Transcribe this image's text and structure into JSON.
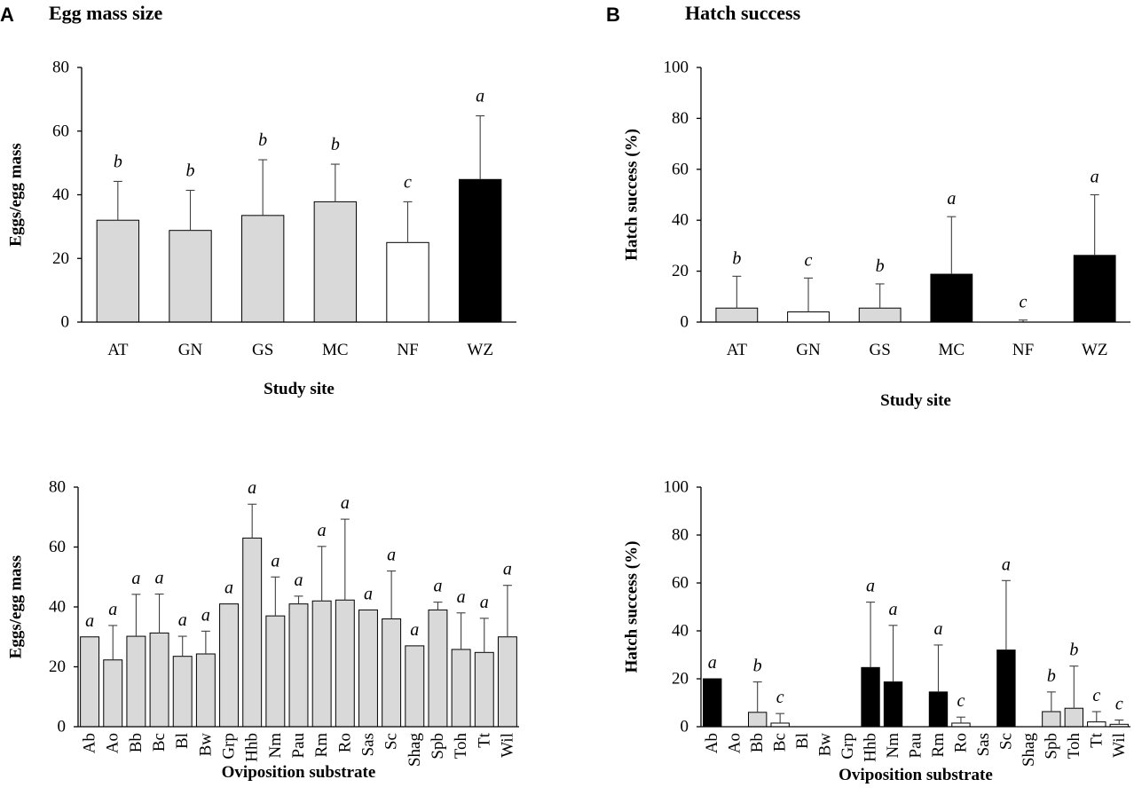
{
  "panels": {
    "A": {
      "letter": "A",
      "title": "Egg mass size"
    },
    "B": {
      "letter": "B",
      "title": "Hatch success"
    }
  },
  "colors": {
    "light": "#d9d9d9",
    "white": "#ffffff",
    "black": "#000000",
    "outline": "#000000"
  },
  "chart_data": [
    {
      "id": "egg_site",
      "type": "bar",
      "title": "Egg mass size",
      "xlabel": "Study site",
      "ylabel": "Eggs/egg mass",
      "ylim": [
        0,
        80
      ],
      "yticks": [
        0,
        20,
        40,
        60,
        80
      ],
      "categories": [
        "AT",
        "GN",
        "GS",
        "MC",
        "NF",
        "WZ"
      ],
      "values": [
        32,
        28.8,
        33.5,
        37.8,
        25,
        44.8
      ],
      "errors": [
        12.2,
        12.6,
        17.5,
        11.8,
        12.8,
        20
      ],
      "letters": [
        "b",
        "b",
        "b",
        "b",
        "c",
        "a"
      ],
      "fills": [
        "light",
        "light",
        "light",
        "light",
        "white",
        "black"
      ]
    },
    {
      "id": "hatch_site",
      "type": "bar",
      "title": "Hatch success",
      "xlabel": "Study site",
      "ylabel": "Hatch success (%)",
      "ylim": [
        0,
        100
      ],
      "yticks": [
        0,
        20,
        40,
        60,
        80,
        100
      ],
      "categories": [
        "AT",
        "GN",
        "GS",
        "MC",
        "NF",
        "WZ"
      ],
      "values": [
        5.5,
        4,
        5.5,
        18.8,
        0,
        26.2
      ],
      "errors": [
        12.5,
        13.3,
        9.5,
        22.6,
        0.8,
        23.8
      ],
      "letters": [
        "b",
        "c",
        "b",
        "a",
        "c",
        "a"
      ],
      "fills": [
        "light",
        "white",
        "light",
        "black",
        "white",
        "black"
      ]
    },
    {
      "id": "egg_substrate",
      "type": "bar",
      "xlabel": "Oviposition substrate",
      "ylabel": "Eggs/egg mass",
      "ylim": [
        0,
        80
      ],
      "yticks": [
        0,
        20,
        40,
        60,
        80
      ],
      "categories": [
        "Ab",
        "Ao",
        "Bb",
        "Bc",
        "Bl",
        "Bw",
        "Grp",
        "Hhb",
        "Nm",
        "Pau",
        "Rm",
        "Ro",
        "Sas",
        "Sc",
        "Shag",
        "Spb",
        "Toh",
        "Tt",
        "Wil"
      ],
      "values": [
        30,
        22.3,
        30.2,
        31.3,
        23.5,
        24.3,
        41,
        63,
        37,
        41,
        42,
        42.3,
        39,
        36,
        27,
        39,
        25.8,
        24.8,
        30
      ],
      "errors": [
        0,
        11.5,
        14,
        13,
        6.7,
        7.6,
        0,
        11.3,
        13,
        2.6,
        18.2,
        27,
        0,
        16,
        0,
        2.6,
        12.2,
        11.4,
        17.2
      ],
      "letters": [
        "a",
        "a",
        "a",
        "a",
        "a",
        "a",
        "a",
        "a",
        "a",
        "a",
        "a",
        "a",
        "a",
        "a",
        "a",
        "a",
        "a",
        "a",
        "a"
      ],
      "fills": [
        "light",
        "light",
        "light",
        "light",
        "light",
        "light",
        "light",
        "light",
        "light",
        "light",
        "light",
        "light",
        "light",
        "light",
        "light",
        "light",
        "light",
        "light",
        "light"
      ]
    },
    {
      "id": "hatch_substrate",
      "type": "bar",
      "xlabel": "Oviposition substrate",
      "ylabel": "Hatch success (%)",
      "ylim": [
        0,
        100
      ],
      "yticks": [
        0,
        20,
        40,
        60,
        80,
        100
      ],
      "categories": [
        "Ab",
        "Ao",
        "Bb",
        "Bc",
        "Bl",
        "Bw",
        "Grp",
        "Hhb",
        "Nm",
        "Pau",
        "Rm",
        "Ro",
        "Sas",
        "Sc",
        "Shag",
        "Spb",
        "Toh",
        "Tt",
        "Wil"
      ],
      "values": [
        20,
        0,
        6,
        1.5,
        0,
        0,
        0,
        24.7,
        18.7,
        0,
        14.5,
        1.5,
        0,
        32,
        0,
        6.3,
        7.7,
        2,
        1
      ],
      "errors": [
        0,
        0,
        12.7,
        4,
        0,
        0,
        0,
        27.3,
        23.6,
        0,
        19.6,
        2.5,
        0,
        29,
        0,
        8.2,
        17.6,
        4.3,
        1.8
      ],
      "letters": [
        "a",
        "",
        "b",
        "c",
        "",
        "",
        "",
        "a",
        "a",
        "",
        "a",
        "c",
        "",
        "a",
        "",
        "b",
        "b",
        "c",
        "c"
      ],
      "fills": [
        "black",
        "white",
        "light",
        "white",
        "white",
        "white",
        "white",
        "black",
        "black",
        "white",
        "black",
        "white",
        "white",
        "black",
        "white",
        "light",
        "light",
        "white",
        "white"
      ]
    }
  ]
}
